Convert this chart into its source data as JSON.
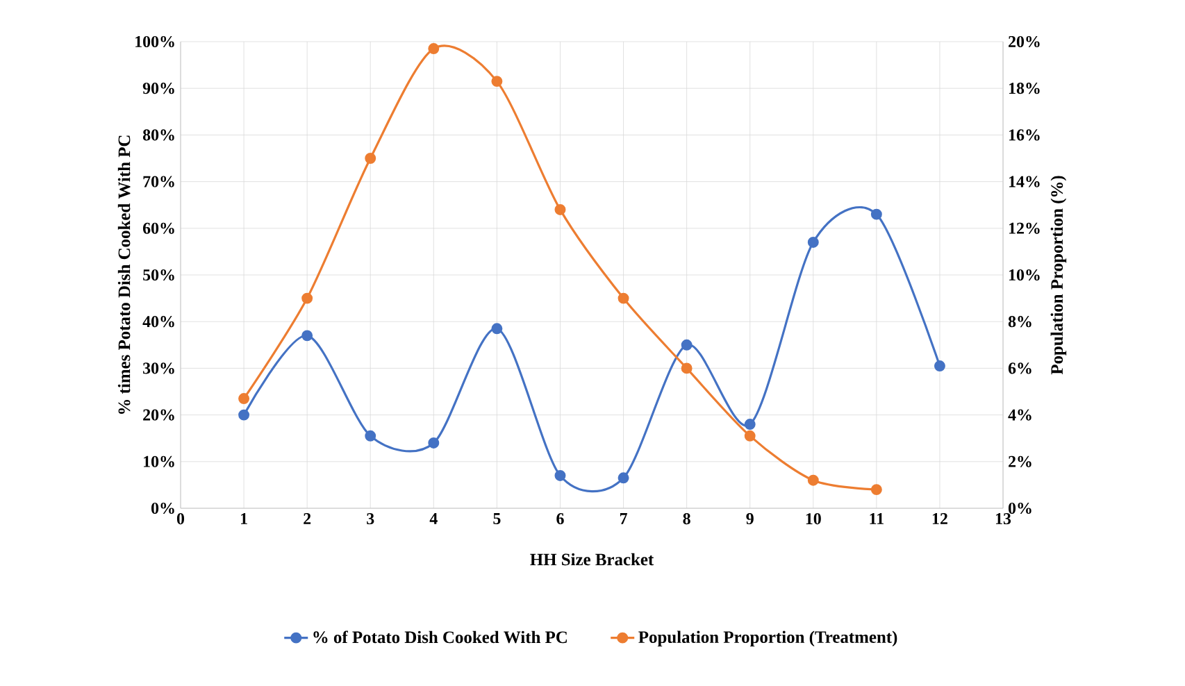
{
  "chart_data": {
    "type": "line",
    "xlabel": "HH Size Bracket",
    "ylabel": "% times Potato Dish Cooked With PC",
    "y2label": "Population Proportion (%)",
    "xlim": [
      0,
      13
    ],
    "xticks": [
      0,
      1,
      2,
      3,
      4,
      5,
      6,
      7,
      8,
      9,
      10,
      11,
      12,
      13
    ],
    "ylim": [
      0,
      100
    ],
    "yticks": [
      {
        "value": 0,
        "label": "0%"
      },
      {
        "value": 10,
        "label": "10%"
      },
      {
        "value": 20,
        "label": "20%"
      },
      {
        "value": 30,
        "label": "30%"
      },
      {
        "value": 40,
        "label": "40%"
      },
      {
        "value": 50,
        "label": "50%"
      },
      {
        "value": 60,
        "label": "60%"
      },
      {
        "value": 70,
        "label": "70%"
      },
      {
        "value": 80,
        "label": "80%"
      },
      {
        "value": 90,
        "label": "90%"
      },
      {
        "value": 100,
        "label": "100%"
      }
    ],
    "y2lim": [
      0,
      20
    ],
    "y2ticks": [
      {
        "value": 0,
        "label": "0%"
      },
      {
        "value": 2,
        "label": "2%"
      },
      {
        "value": 4,
        "label": "4%"
      },
      {
        "value": 6,
        "label": "6%"
      },
      {
        "value": 8,
        "label": "8%"
      },
      {
        "value": 10,
        "label": "10%"
      },
      {
        "value": 12,
        "label": "12%"
      },
      {
        "value": 14,
        "label": "14%"
      },
      {
        "value": 16,
        "label": "16%"
      },
      {
        "value": 18,
        "label": "18%"
      },
      {
        "value": 20,
        "label": "20%"
      }
    ],
    "grid": true,
    "legend": "bottom",
    "marker": "circle",
    "series": [
      {
        "name": "% of Potato Dish Cooked With PC",
        "color": "#4472c4",
        "x": [
          1,
          2,
          3,
          4,
          5,
          6,
          7,
          8,
          9,
          10,
          11,
          12
        ],
        "values": [
          20,
          37,
          15.5,
          14,
          38.5,
          7,
          6.5,
          35,
          18,
          57,
          63,
          30.5
        ]
      },
      {
        "name": "Population Proportion (Treatment)",
        "color": "#ed7d31",
        "axis": "y2",
        "x": [
          1,
          2,
          3,
          4,
          5,
          6,
          7,
          8,
          9,
          10,
          11
        ],
        "values": [
          4.7,
          9,
          15,
          19.7,
          18.3,
          12.8,
          9,
          6,
          3.1,
          1.2,
          0.8
        ]
      }
    ]
  }
}
